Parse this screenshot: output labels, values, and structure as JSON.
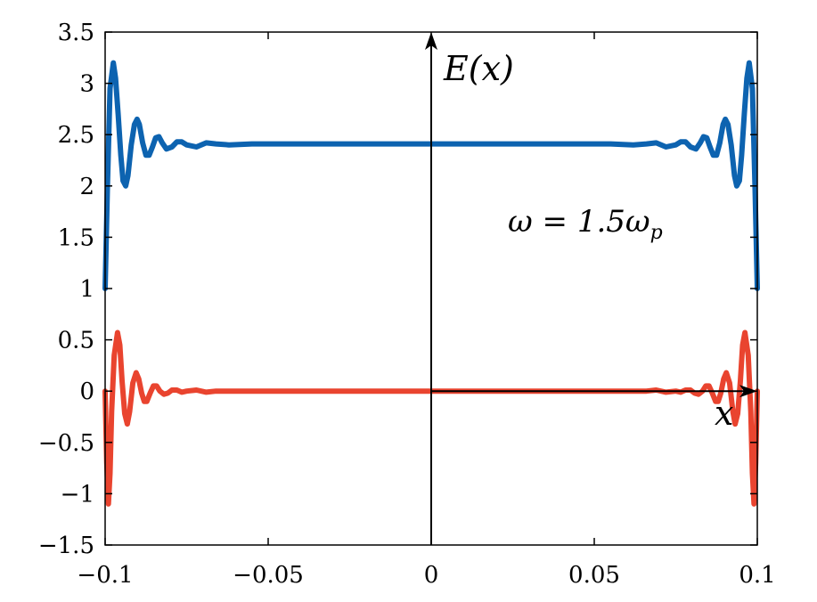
{
  "chart_data": {
    "type": "line",
    "title": "",
    "xlabel": "x",
    "ylabel": "E(x)",
    "annotation": "ω = 1.5ω_p",
    "annotation_parts": {
      "lhs": "ω = 1.5ω",
      "sub": "p"
    },
    "xlim": [
      -0.1,
      0.1
    ],
    "ylim": [
      -1.5,
      3.5
    ],
    "x_ticks": [
      -0.1,
      -0.05,
      0,
      0.05,
      0.1
    ],
    "x_tick_labels": [
      "−0.1",
      "−0.05",
      "0",
      "0.05",
      "0.1"
    ],
    "y_ticks": [
      -1.5,
      -1,
      -0.5,
      0,
      0.5,
      1,
      1.5,
      2,
      2.5,
      3,
      3.5
    ],
    "y_tick_labels": [
      "−1.5",
      "−1",
      "−0.5",
      "0",
      "0.5",
      "1",
      "1.5",
      "2",
      "2.5",
      "3",
      "3.5"
    ],
    "grid": false,
    "legend": "none",
    "series": [
      {
        "color": "#0d63b0",
        "x": [
          -0.1,
          -0.0993,
          -0.0985,
          -0.0975,
          -0.0968,
          -0.096,
          -0.0952,
          -0.0945,
          -0.0937,
          -0.093,
          -0.092,
          -0.091,
          -0.0902,
          -0.0895,
          -0.0885,
          -0.0875,
          -0.0865,
          -0.0855,
          -0.0845,
          -0.0835,
          -0.0825,
          -0.0812,
          -0.0795,
          -0.078,
          -0.0765,
          -0.075,
          -0.072,
          -0.069,
          -0.066,
          -0.062,
          -0.055,
          -0.04,
          -0.02,
          0,
          0.02,
          0.04,
          0.055,
          0.062,
          0.066,
          0.069,
          0.072,
          0.075,
          0.0765,
          0.078,
          0.0795,
          0.0812,
          0.0825,
          0.0835,
          0.0845,
          0.0855,
          0.0865,
          0.0875,
          0.0885,
          0.0895,
          0.0902,
          0.091,
          0.092,
          0.093,
          0.0937,
          0.0945,
          0.0952,
          0.096,
          0.0968,
          0.0975,
          0.0985,
          0.0993,
          0.1
        ],
        "y": [
          1.0,
          2.0,
          2.95,
          3.2,
          3.05,
          2.7,
          2.3,
          2.05,
          2.0,
          2.1,
          2.4,
          2.6,
          2.65,
          2.6,
          2.42,
          2.3,
          2.3,
          2.38,
          2.47,
          2.48,
          2.42,
          2.36,
          2.38,
          2.43,
          2.43,
          2.4,
          2.38,
          2.42,
          2.41,
          2.4,
          2.41,
          2.41,
          2.41,
          2.41,
          2.41,
          2.41,
          2.41,
          2.4,
          2.41,
          2.42,
          2.38,
          2.4,
          2.43,
          2.43,
          2.38,
          2.36,
          2.42,
          2.48,
          2.47,
          2.38,
          2.3,
          2.3,
          2.42,
          2.6,
          2.65,
          2.6,
          2.4,
          2.1,
          2.0,
          2.05,
          2.3,
          2.7,
          3.05,
          3.2,
          2.95,
          2.0,
          1.0
        ]
      },
      {
        "color": "#e9442f",
        "x": [
          -0.1,
          -0.0995,
          -0.099,
          -0.0985,
          -0.098,
          -0.0972,
          -0.0962,
          -0.0955,
          -0.0948,
          -0.094,
          -0.0932,
          -0.0925,
          -0.0915,
          -0.0905,
          -0.0897,
          -0.0888,
          -0.088,
          -0.0872,
          -0.0862,
          -0.0852,
          -0.0842,
          -0.0832,
          -0.082,
          -0.0808,
          -0.0795,
          -0.078,
          -0.0765,
          -0.075,
          -0.072,
          -0.069,
          -0.066,
          -0.062,
          -0.055,
          -0.04,
          -0.02,
          0,
          0.02,
          0.04,
          0.055,
          0.062,
          0.066,
          0.069,
          0.072,
          0.075,
          0.0765,
          0.078,
          0.0795,
          0.0808,
          0.082,
          0.0832,
          0.0842,
          0.0852,
          0.0862,
          0.0872,
          0.088,
          0.0888,
          0.0897,
          0.0905,
          0.0915,
          0.0925,
          0.0932,
          0.094,
          0.0948,
          0.0955,
          0.0962,
          0.0972,
          0.098,
          0.0985,
          0.099,
          0.0995,
          0.1
        ],
        "y": [
          0.0,
          -0.7,
          -1.1,
          -0.8,
          -0.2,
          0.35,
          0.57,
          0.45,
          0.1,
          -0.22,
          -0.32,
          -0.2,
          0.08,
          0.18,
          0.12,
          -0.02,
          -0.1,
          -0.1,
          -0.02,
          0.05,
          0.05,
          0.0,
          -0.03,
          -0.02,
          0.01,
          0.01,
          -0.01,
          0.0,
          0.01,
          -0.01,
          0.0,
          0.0,
          0.0,
          0.0,
          0.0,
          0.0,
          0.0,
          0.0,
          0.0,
          0.0,
          0.0,
          0.01,
          -0.01,
          0.0,
          -0.01,
          0.01,
          0.01,
          -0.02,
          -0.03,
          0.0,
          0.05,
          0.05,
          -0.02,
          -0.1,
          -0.1,
          -0.02,
          0.12,
          0.18,
          0.08,
          -0.2,
          -0.32,
          -0.22,
          0.1,
          0.45,
          0.57,
          0.35,
          -0.2,
          -0.8,
          -1.1,
          -0.7,
          0.0
        ]
      }
    ]
  }
}
